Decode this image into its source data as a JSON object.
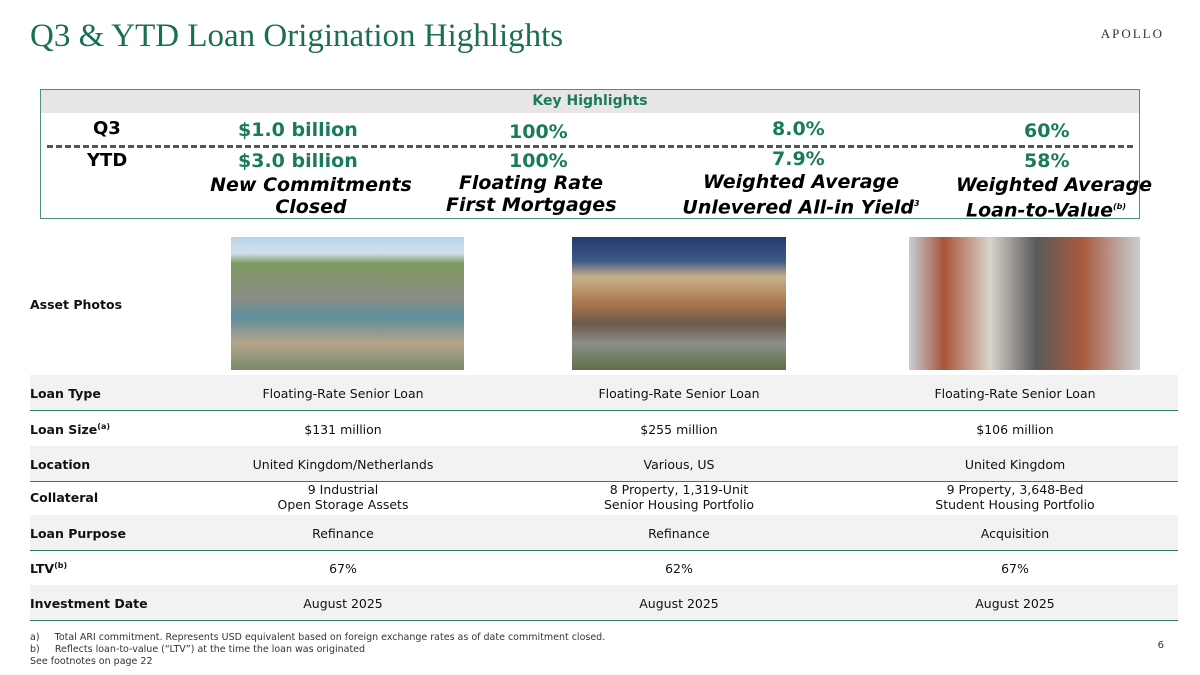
{
  "logo": "APOLLO",
  "title": "Q3 & YTD Loan Origination Highlights",
  "highlights": {
    "header": "Key Highlights",
    "q3_label": "Q3",
    "ytd_label": "YTD",
    "metrics": [
      {
        "q3": "$1.0 billion",
        "ytd": "$3.0 billion",
        "line1": "New Commitments",
        "line2": "Closed",
        "sup": ""
      },
      {
        "q3": "100%",
        "ytd": "100%",
        "line1": "Floating Rate",
        "line2": "First Mortgages",
        "sup": ""
      },
      {
        "q3": "8.0%",
        "ytd": "7.9%",
        "line1": "Weighted Average",
        "line2": "Unlevered All-in Yield",
        "sup": "3"
      },
      {
        "q3": "60%",
        "ytd": "58%",
        "line1": "Weighted Average",
        "line2": "Loan-to-Value",
        "sup": "(b)"
      }
    ]
  },
  "asset_photos_label": "Asset Photos",
  "rows": [
    {
      "label": "Loan Type",
      "sup": "",
      "values": [
        "Floating-Rate Senior Loan",
        "Floating-Rate Senior Loan",
        "Floating-Rate Senior Loan"
      ]
    },
    {
      "label": "Loan Size",
      "sup": "(a)",
      "values": [
        "$131 million",
        "$255 million",
        "$106 million"
      ]
    },
    {
      "label": "Location",
      "sup": "",
      "values": [
        "United Kingdom/Netherlands",
        "Various, US",
        "United Kingdom"
      ]
    },
    {
      "label": "Collateral",
      "sup": "",
      "values": [
        "9 Industrial",
        "8 Property, 1,319-Unit",
        "9 Property, 3,648-Bed"
      ],
      "values2": [
        "Open Storage Assets",
        "Senior Housing Portfolio",
        "Student Housing Portfolio"
      ]
    },
    {
      "label": "Loan Purpose",
      "sup": "",
      "values": [
        "Refinance",
        "Refinance",
        "Acquisition"
      ]
    },
    {
      "label": "LTV",
      "sup": "(b)",
      "values": [
        "67%",
        "62%",
        "67%"
      ]
    },
    {
      "label": "Investment Date",
      "sup": "",
      "values": [
        "August 2025",
        "August 2025",
        "August 2025"
      ]
    }
  ],
  "footnotes": [
    "a)     Total ARI commitment. Represents USD equivalent based on foreign exchange rates as of date commitment closed.",
    "b)     Reflects loan-to-value (“LTV”) at the time the loan was originated",
    "See footnotes on page 22"
  ],
  "page_number": "6"
}
